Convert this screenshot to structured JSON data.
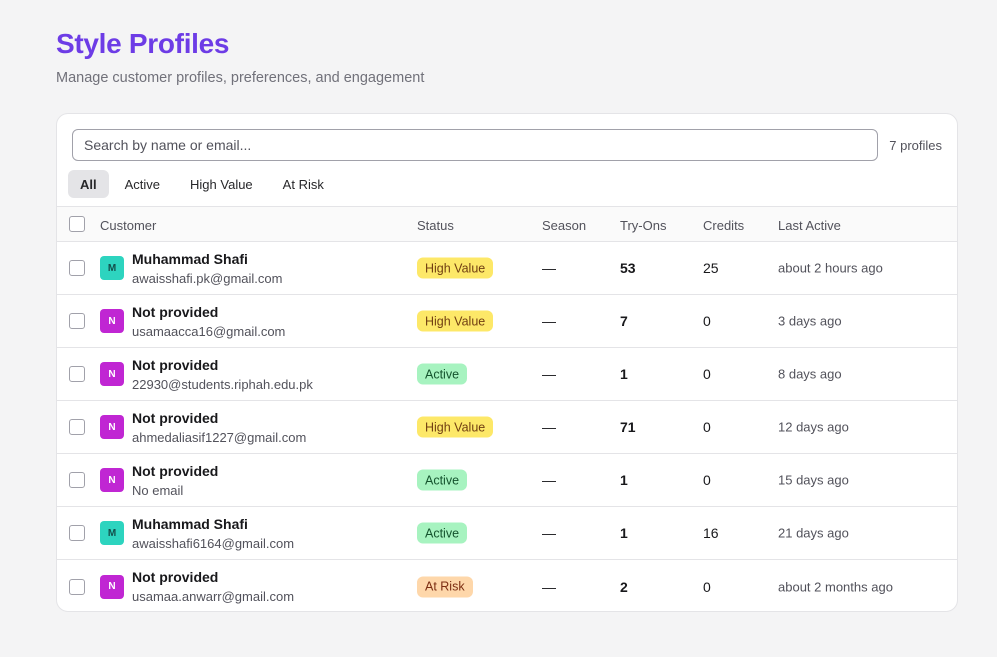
{
  "header": {
    "title": "Style Profiles",
    "subtitle": "Manage customer profiles, preferences, and engagement"
  },
  "search": {
    "placeholder": "Search by name or email...",
    "count_label": "7 profiles"
  },
  "tabs": [
    {
      "label": "All",
      "active": true
    },
    {
      "label": "Active",
      "active": false
    },
    {
      "label": "High Value",
      "active": false
    },
    {
      "label": "At Risk",
      "active": false
    }
  ],
  "table": {
    "columns": {
      "customer": "Customer",
      "status": "Status",
      "season": "Season",
      "tryons": "Try-Ons",
      "credits": "Credits",
      "last_active": "Last Active"
    },
    "rows": [
      {
        "initial": "M",
        "name": "Muhammad Shafi",
        "email": "awaisshafi.pk@gmail.com",
        "status": "High Value",
        "season": "—",
        "tryons": "53",
        "credits": "25",
        "last_active": "about 2 hours ago"
      },
      {
        "initial": "N",
        "name": "Not provided",
        "email": "usamaacca16@gmail.com",
        "status": "High Value",
        "season": "—",
        "tryons": "7",
        "credits": "0",
        "last_active": "3 days ago"
      },
      {
        "initial": "N",
        "name": "Not provided",
        "email": "22930@students.riphah.edu.pk",
        "status": "Active",
        "season": "—",
        "tryons": "1",
        "credits": "0",
        "last_active": "8 days ago"
      },
      {
        "initial": "N",
        "name": "Not provided",
        "email": "ahmedaliasif1227@gmail.com",
        "status": "High Value",
        "season": "—",
        "tryons": "71",
        "credits": "0",
        "last_active": "12 days ago"
      },
      {
        "initial": "N",
        "name": "Not provided",
        "email": "No email",
        "status": "Active",
        "season": "—",
        "tryons": "1",
        "credits": "0",
        "last_active": "15 days ago"
      },
      {
        "initial": "M",
        "name": "Muhammad Shafi",
        "email": "awaisshafi6164@gmail.com",
        "status": "Active",
        "season": "—",
        "tryons": "1",
        "credits": "16",
        "last_active": "21 days ago"
      },
      {
        "initial": "N",
        "name": "Not provided",
        "email": "usamaa.anwarr@gmail.com",
        "status": "At Risk",
        "season": "—",
        "tryons": "2",
        "credits": "0",
        "last_active": "about 2 months ago"
      }
    ]
  },
  "colors": {
    "brand": "#6d3ce6",
    "high_value": "#fde868",
    "active": "#a7f3c0",
    "at_risk": "#fed7aa",
    "avatar_m": "#2dd4bf",
    "avatar_n": "#c026d3"
  }
}
